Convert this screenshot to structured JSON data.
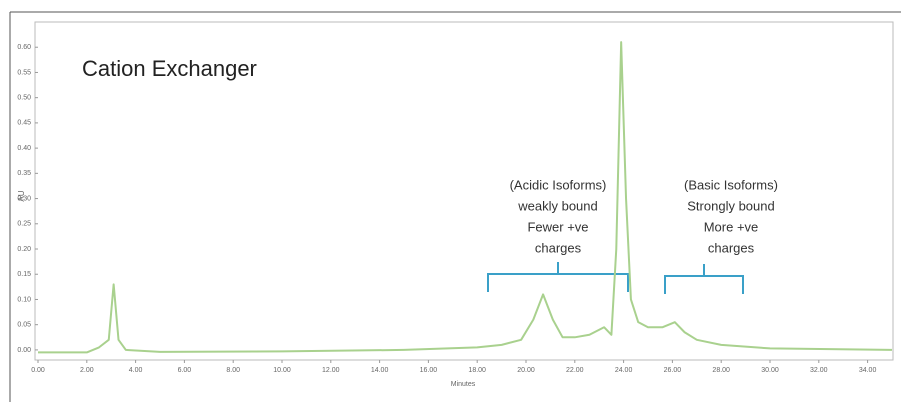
{
  "chart_data": {
    "type": "line",
    "title": "Cation Exchanger",
    "x_label": "Minutes",
    "y_label": "AU",
    "x": [
      0,
      2,
      2.5,
      2.9,
      3.1,
      3.3,
      3.6,
      5,
      10,
      15,
      18,
      19,
      19.8,
      20.3,
      20.7,
      21.1,
      21.5,
      22,
      22.6,
      23.2,
      23.5,
      23.7,
      23.9,
      24.1,
      24.3,
      24.6,
      25,
      25.6,
      26.1,
      26.5,
      27,
      28,
      30,
      35
    ],
    "values": [
      -0.005,
      -0.005,
      0.005,
      0.02,
      0.13,
      0.02,
      0.0,
      -0.004,
      -0.003,
      0.0,
      0.005,
      0.01,
      0.02,
      0.06,
      0.11,
      0.06,
      0.025,
      0.025,
      0.03,
      0.045,
      0.03,
      0.2,
      0.61,
      0.3,
      0.1,
      0.055,
      0.045,
      0.045,
      0.055,
      0.035,
      0.02,
      0.01,
      0.003,
      0.0
    ],
    "color": "#a9d18e",
    "xlim": [
      0,
      35
    ],
    "ylim": [
      -0.02,
      0.65
    ],
    "xticks": [
      {
        "value": 0,
        "label": "0.00"
      },
      {
        "value": 2,
        "label": "2.00"
      },
      {
        "value": 4,
        "label": "4.00"
      },
      {
        "value": 6,
        "label": "6.00"
      },
      {
        "value": 8,
        "label": "8.00"
      },
      {
        "value": 10,
        "label": "10.00"
      },
      {
        "value": 12,
        "label": "12.00"
      },
      {
        "value": 14,
        "label": "14.00"
      },
      {
        "value": 16,
        "label": "16.00"
      },
      {
        "value": 18,
        "label": "18.00"
      },
      {
        "value": 20,
        "label": "20.00"
      },
      {
        "value": 22,
        "label": "22.00"
      },
      {
        "value": 24,
        "label": "24.00"
      },
      {
        "value": 26,
        "label": "26.00"
      },
      {
        "value": 28,
        "label": "28.00"
      },
      {
        "value": 30,
        "label": "30.00"
      },
      {
        "value": 32,
        "label": "32.00"
      },
      {
        "value": 34,
        "label": "34.00"
      }
    ],
    "yticks": [
      {
        "value": 0,
        "label": "0.00"
      },
      {
        "value": 0.05,
        "label": "0.05"
      },
      {
        "value": 0.1,
        "label": "0.10"
      },
      {
        "value": 0.15,
        "label": "0.15"
      },
      {
        "value": 0.2,
        "label": "0.20"
      },
      {
        "value": 0.25,
        "label": "0.25"
      },
      {
        "value": 0.3,
        "label": "0.30"
      },
      {
        "value": 0.35,
        "label": "0.35"
      },
      {
        "value": 0.4,
        "label": "0.40"
      },
      {
        "value": 0.45,
        "label": "0.45"
      },
      {
        "value": 0.5,
        "label": "0.50"
      },
      {
        "value": 0.55,
        "label": "0.55"
      },
      {
        "value": 0.6,
        "label": "0.60"
      }
    ],
    "annotations": [
      {
        "lines": [
          "(Acidic Isoforms)",
          "weakly bound",
          "Fewer +ve",
          "charges"
        ]
      },
      {
        "lines": [
          "(Basic Isoforms)",
          "Strongly bound",
          "More +ve",
          "charges"
        ]
      }
    ]
  }
}
